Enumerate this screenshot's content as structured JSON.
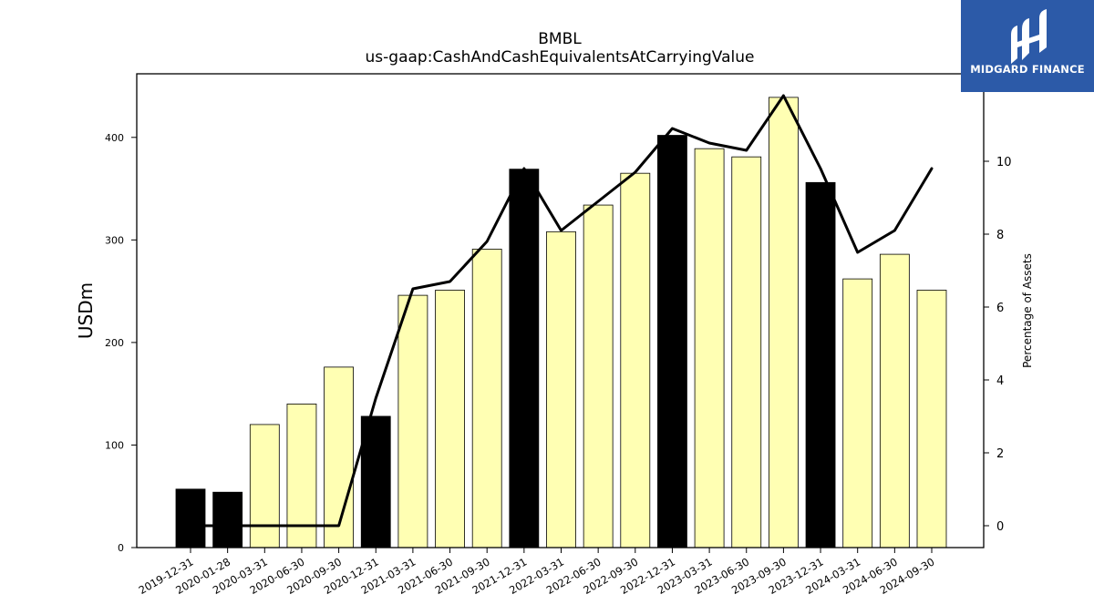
{
  "chart_data": {
    "type": "bar",
    "title": "BMBL",
    "subtitle": "us-gaap:CashAndCashEquivalentsAtCarryingValue",
    "ylabel": "USDm",
    "y2label": "Percentage of Assets",
    "ylim": [
      0,
      462
    ],
    "y2lim": [
      -0.6,
      12.4
    ],
    "yticks": [
      0,
      100,
      200,
      300,
      400
    ],
    "y2ticks": [
      0,
      2,
      4,
      6,
      8,
      10
    ],
    "categories": [
      "2019-12-31",
      "2020-01-28",
      "2020-03-31",
      "2020-06-30",
      "2020-09-30",
      "2020-12-31",
      "2021-03-31",
      "2021-06-30",
      "2021-09-30",
      "2021-12-31",
      "2022-03-31",
      "2022-06-30",
      "2022-09-30",
      "2022-12-31",
      "2023-03-31",
      "2023-06-30",
      "2023-09-30",
      "2023-12-31",
      "2024-03-31",
      "2024-06-30",
      "2024-09-30"
    ],
    "series": [
      {
        "type": "bar",
        "values": [
          57,
          54,
          120,
          140,
          176,
          128,
          246,
          251,
          291,
          369,
          308,
          334,
          365,
          402,
          389,
          381,
          439,
          356,
          262,
          286,
          251
        ],
        "colors": [
          "#000000",
          "#000000",
          "#ffffb3",
          "#ffffb3",
          "#ffffb3",
          "#000000",
          "#ffffb3",
          "#ffffb3",
          "#ffffb3",
          "#000000",
          "#ffffb3",
          "#ffffb3",
          "#ffffb3",
          "#000000",
          "#ffffb3",
          "#ffffb3",
          "#ffffb3",
          "#000000",
          "#ffffb3",
          "#ffffb3",
          "#ffffb3"
        ]
      },
      {
        "type": "line",
        "axis": "right",
        "color": "#000000",
        "values": [
          0,
          0,
          0,
          0,
          0,
          3.5,
          6.5,
          6.7,
          7.8,
          9.8,
          8.1,
          8.9,
          9.7,
          10.9,
          10.5,
          10.3,
          11.8,
          9.8,
          7.5,
          8.1,
          9.8
        ]
      }
    ],
    "grid": false,
    "legend": "none"
  },
  "logo": {
    "text": "MIDGARD FINANCE",
    "bg_color": "#2c5aa8"
  }
}
